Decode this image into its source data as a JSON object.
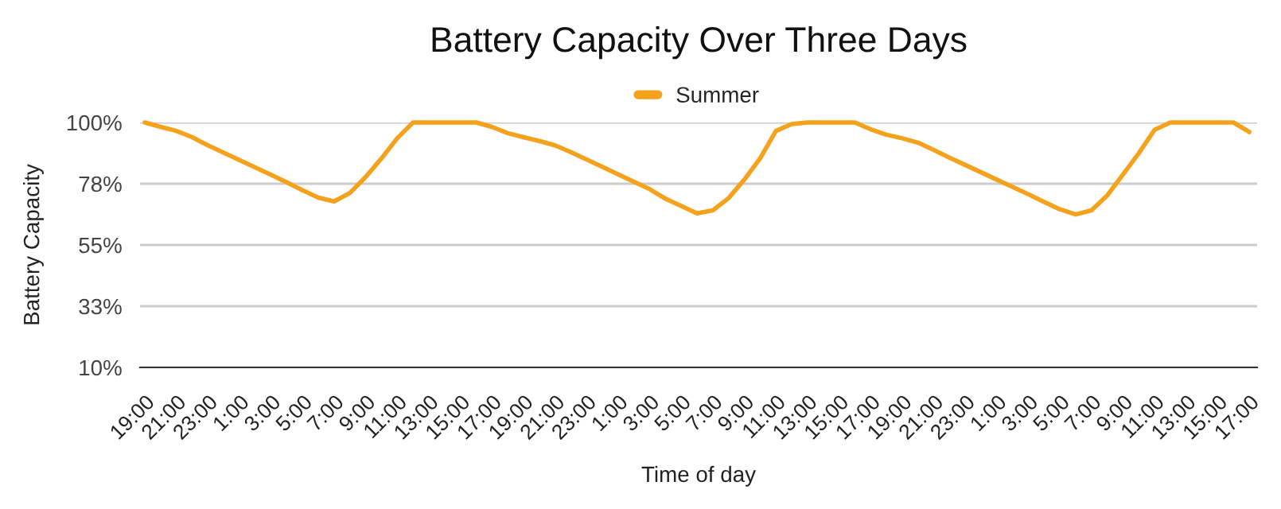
{
  "chart_data": {
    "type": "line",
    "title": "Battery Capacity Over Three Days",
    "xlabel": "Time of day",
    "ylabel": "Battery Capacity",
    "categories": [
      "19:00",
      null,
      "21:00",
      null,
      "23:00",
      null,
      "1:00",
      null,
      "3:00",
      null,
      "5:00",
      null,
      "7:00",
      null,
      "9:00",
      null,
      "11:00",
      null,
      "13:00",
      null,
      "15:00",
      null,
      "17:00",
      null,
      "19:00",
      null,
      "21:00",
      null,
      "23:00",
      null,
      "1:00",
      null,
      "3:00",
      null,
      "5:00",
      null,
      "7:00",
      null,
      "9:00",
      null,
      "11:00",
      null,
      "13:00",
      null,
      "15:00",
      null,
      "17:00",
      null,
      "19:00",
      null,
      "21:00",
      null,
      "23:00",
      null,
      "1:00",
      null,
      "3:00",
      null,
      "5:00",
      null,
      "7:00",
      null,
      "9:00",
      null,
      "11:00",
      null,
      "13:00",
      null,
      "15:00",
      null,
      "17:00"
    ],
    "series": [
      {
        "name": "Summer",
        "color": "#f4a21c",
        "values": [
          100,
          98.4,
          96.9,
          94.6,
          91.6,
          88.9,
          86.2,
          83.5,
          80.8,
          78,
          75.1,
          72.4,
          71,
          74.1,
          80,
          86.8,
          94.2,
          100,
          100,
          100,
          100,
          100,
          98.4,
          96.1,
          94.6,
          93.2,
          91.6,
          89.1,
          86.4,
          83.7,
          80.9,
          78.2,
          75.5,
          72,
          69.3,
          66.6,
          67.7,
          72.2,
          79,
          86.8,
          96.9,
          99.4,
          100,
          100,
          100,
          100,
          97.5,
          95.5,
          94.2,
          92.6,
          89.9,
          87.1,
          84.4,
          81.7,
          79,
          76.3,
          73.6,
          70.8,
          68.1,
          66.2,
          67.7,
          73.2,
          80.9,
          88.7,
          97.3,
          100,
          100,
          100,
          100,
          100,
          96.5
        ]
      }
    ],
    "ylim": [
      10,
      100
    ],
    "yticks": [
      {
        "value": 10,
        "label": "10%"
      },
      {
        "value": 32.5,
        "label": "33%"
      },
      {
        "value": 55,
        "label": "55%"
      },
      {
        "value": 77.5,
        "label": "78%"
      },
      {
        "value": 100,
        "label": "100%"
      }
    ],
    "grid": "y",
    "legend": "top",
    "marker": "none",
    "line_style": "solid"
  }
}
